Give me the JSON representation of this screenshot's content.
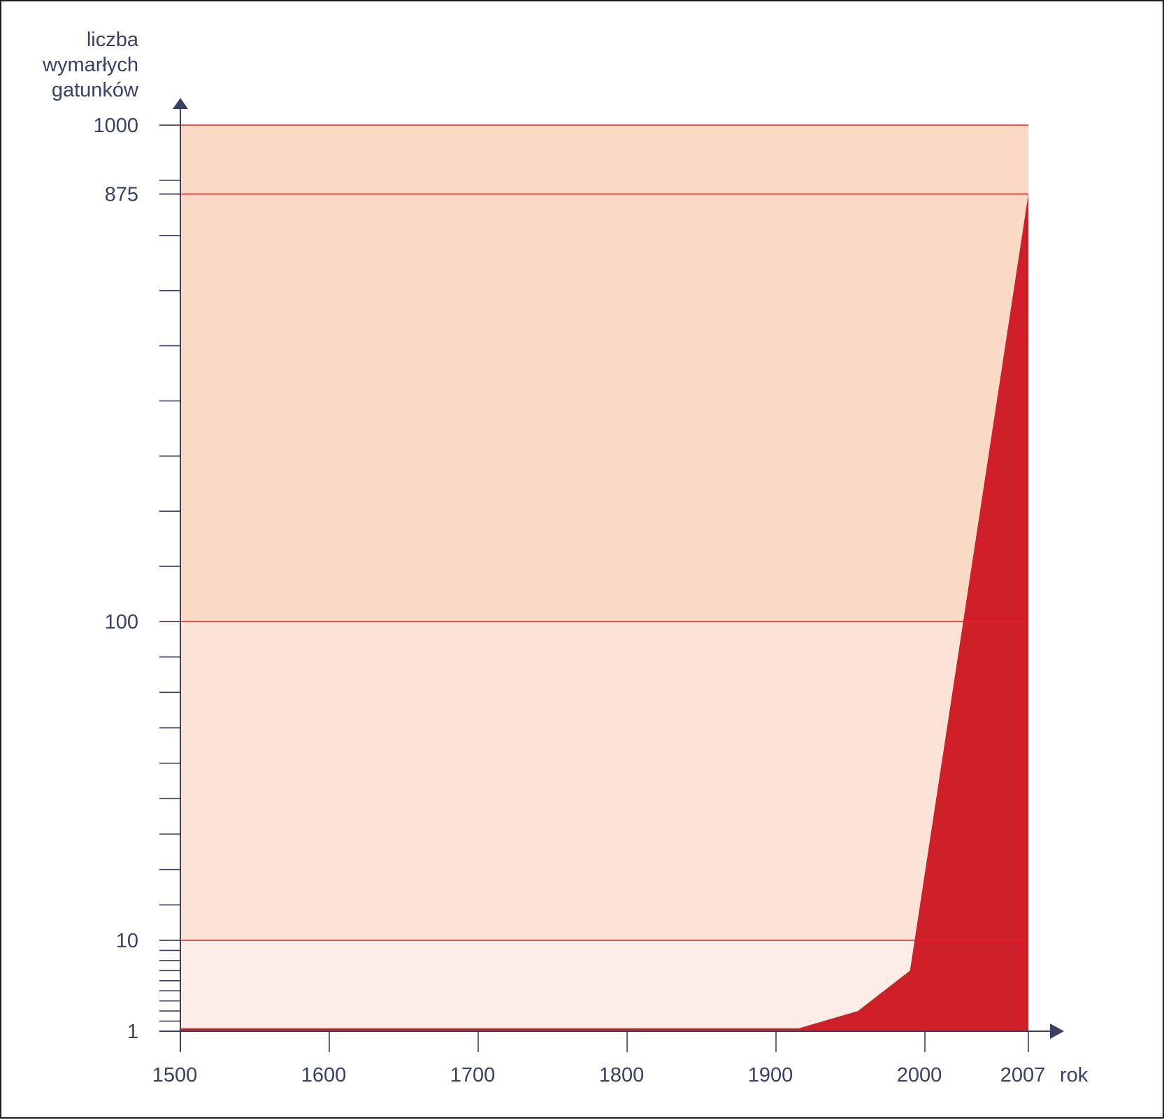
{
  "chart_data": {
    "type": "area",
    "title": "",
    "xlabel": "rok",
    "ylabel_lines": [
      "liczba",
      "wymarłych",
      "gatunków"
    ],
    "x_ticks": [
      1500,
      1600,
      1700,
      1800,
      1900,
      2000,
      2007
    ],
    "y_ticks": [
      1,
      10,
      100,
      875,
      1000
    ],
    "y_reference_lines": [
      10,
      100,
      875,
      1000
    ],
    "xlim": [
      1500,
      2007
    ],
    "series": [
      {
        "points": [
          {
            "x": 1500,
            "y": 1
          },
          {
            "x": 1915,
            "y": 1
          },
          {
            "x": 1955,
            "y": 3
          },
          {
            "x": 1990,
            "y": 7
          },
          {
            "x": 2007,
            "y": 875
          }
        ]
      }
    ],
    "bands": [
      {
        "from": 1,
        "to": 10,
        "color": "#fcede6"
      },
      {
        "from": 10,
        "to": 100,
        "color": "#fce3d8"
      },
      {
        "from": 100,
        "to": 1000,
        "color": "#fad9c5"
      }
    ],
    "colors": {
      "area": "#cf2029",
      "reference_line": "#e8202a",
      "axis": "#3a4163",
      "text": "#3a4163"
    }
  }
}
